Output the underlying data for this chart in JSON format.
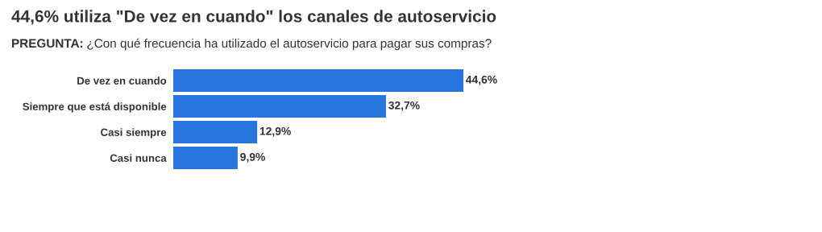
{
  "chart_data": {
    "type": "bar",
    "orientation": "horizontal",
    "title": "44,6% utiliza \"De vez en cuando\" los canales de autoservicio",
    "subtitle": "PREGUNTA: ¿Con qué frecuencia ha utilizado el autoservicio para pagar sus compras?",
    "categories": [
      "De vez en cuando",
      "Siempre que está disponible",
      "Casi siempre",
      "Casi nunca"
    ],
    "values": [
      44.6,
      32.7,
      12.9,
      9.9
    ],
    "value_labels": [
      "44,6%",
      "32,7%",
      "12,9%",
      "9,9%"
    ],
    "color": "#2a74de",
    "tick_labels": "y",
    "grid": false,
    "legend": false
  }
}
